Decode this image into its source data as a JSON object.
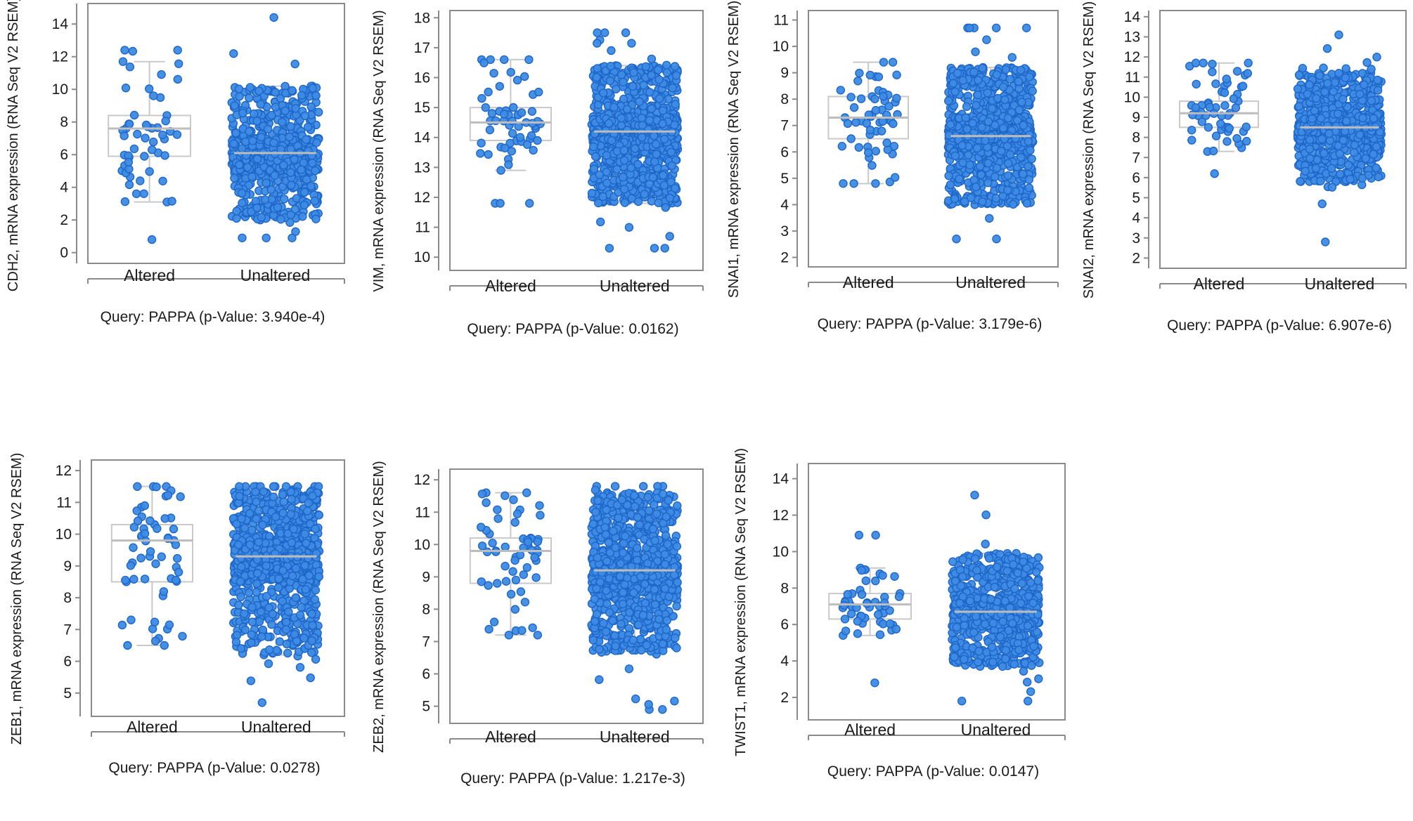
{
  "figure": {
    "caption_template": "Query: PAPPA (p-Value: {p})"
  },
  "colors": {
    "point_fill": "#3d8be4",
    "point_stroke": "#1e66c8",
    "box_stroke": "#c9c9c9",
    "median_stroke": "#bdbdbd",
    "frame_stroke": "#8a8a8a",
    "axis_stroke": "#8a8a8a"
  },
  "chart_data": [
    {
      "type": "box-strip",
      "gene": "CDH2",
      "ylabel": "CDH2, mRNA expression (RNA Seq V2 RSEM)",
      "ylim": [
        -0.4,
        15
      ],
      "yticks": [
        0,
        2,
        4,
        6,
        8,
        10,
        12,
        14
      ],
      "categories": [
        "Altered",
        "Unaltered"
      ],
      "caption": "Query: PAPPA (p-Value: 3.940e-4)",
      "p_value": "3.940e-4",
      "series": [
        {
          "name": "Altered",
          "n": 55,
          "min": 0.8,
          "q1": 5.9,
          "median": 7.6,
          "q3": 8.4,
          "max": 12.4,
          "whisker_low": 3.1,
          "whisker_high": 11.7
        },
        {
          "name": "Unaltered",
          "n": 720,
          "min": 0.9,
          "q1": 5.0,
          "median": 6.1,
          "q3": 7.0,
          "max": 14.4,
          "whisker_low": 2.0,
          "whisker_high": 10.2
        }
      ]
    },
    {
      "type": "box-strip",
      "gene": "VIM",
      "ylabel": "VIM, mRNA expression (RNA Seq V2 RSEM)",
      "ylim": [
        9.7,
        18.1
      ],
      "yticks": [
        10,
        11,
        12,
        13,
        14,
        15,
        16,
        17,
        18
      ],
      "categories": [
        "Altered",
        "Unaltered"
      ],
      "caption": "Query: PAPPA (p-Value: 0.0162)",
      "p_value": "0.0162",
      "series": [
        {
          "name": "Altered",
          "n": 60,
          "min": 11.8,
          "q1": 13.9,
          "median": 14.5,
          "q3": 15.0,
          "max": 16.6,
          "whisker_low": 12.9,
          "whisker_high": 16.6
        },
        {
          "name": "Unaltered",
          "n": 1000,
          "min": 10.3,
          "q1": 13.5,
          "median": 14.2,
          "q3": 14.7,
          "max": 17.5,
          "whisker_low": 11.8,
          "whisker_high": 16.4
        }
      ]
    },
    {
      "type": "box-strip",
      "gene": "SNAI1",
      "ylabel": "SNAI1, mRNA expression (RNA Seq V2 RSEM)",
      "ylim": [
        1.8,
        11.2
      ],
      "yticks": [
        2,
        3,
        4,
        5,
        6,
        7,
        8,
        9,
        10,
        11
      ],
      "categories": [
        "Altered",
        "Unaltered"
      ],
      "caption": "Query: PAPPA (p-Value: 3.179e-6)",
      "p_value": "3.179e-6",
      "series": [
        {
          "name": "Altered",
          "n": 60,
          "min": 4.8,
          "q1": 6.5,
          "median": 7.3,
          "q3": 8.1,
          "max": 9.4,
          "whisker_low": 4.8,
          "whisker_high": 9.4
        },
        {
          "name": "Unaltered",
          "n": 1000,
          "min": 2.7,
          "q1": 6.0,
          "median": 6.6,
          "q3": 7.3,
          "max": 10.7,
          "whisker_low": 4.0,
          "whisker_high": 9.2
        }
      ]
    },
    {
      "type": "box-strip",
      "gene": "SNAI2",
      "ylabel": "SNAI2, mRNA expression (RNA Seq V2 RSEM)",
      "ylim": [
        1.7,
        14.1
      ],
      "yticks": [
        2,
        3,
        4,
        5,
        6,
        7,
        8,
        9,
        10,
        11,
        12,
        13,
        14
      ],
      "categories": [
        "Altered",
        "Unaltered"
      ],
      "caption": "Query: PAPPA (p-Value: 6.907e-6)",
      "p_value": "6.907e-6",
      "series": [
        {
          "name": "Altered",
          "n": 60,
          "min": 6.2,
          "q1": 8.5,
          "median": 9.2,
          "q3": 9.8,
          "max": 11.7,
          "whisker_low": 7.3,
          "whisker_high": 11.7
        },
        {
          "name": "Unaltered",
          "n": 1000,
          "min": 2.8,
          "q1": 7.8,
          "median": 8.5,
          "q3": 9.2,
          "max": 13.1,
          "whisker_low": 5.8,
          "whisker_high": 11.2
        }
      ]
    },
    {
      "type": "box-strip",
      "gene": "ZEB1",
      "ylabel": "ZEB1, mRNA expression (RNA Seq V2 RSEM)",
      "ylim": [
        4.4,
        12.2
      ],
      "yticks": [
        5,
        6,
        7,
        8,
        9,
        10,
        11,
        12
      ],
      "categories": [
        "Altered",
        "Unaltered"
      ],
      "caption": "Query: PAPPA (p-Value: 0.0278)",
      "p_value": "0.0278",
      "series": [
        {
          "name": "Altered",
          "n": 60,
          "min": 6.5,
          "q1": 8.5,
          "median": 9.8,
          "q3": 10.3,
          "max": 11.5,
          "whisker_low": 6.5,
          "whisker_high": 11.5
        },
        {
          "name": "Unaltered",
          "n": 1000,
          "min": 4.7,
          "q1": 8.5,
          "median": 9.3,
          "q3": 9.9,
          "max": 11.5,
          "whisker_low": 6.2,
          "whisker_high": 11.4
        }
      ]
    },
    {
      "type": "box-strip",
      "gene": "ZEB2",
      "ylabel": "ZEB2, mRNA expression (RNA Seq V2 RSEM)",
      "ylim": [
        4.6,
        12.2
      ],
      "yticks": [
        5,
        6,
        7,
        8,
        9,
        10,
        11,
        12
      ],
      "categories": [
        "Altered",
        "Unaltered"
      ],
      "caption": "Query: PAPPA (p-Value: 1.217e-3)",
      "p_value": "1.217e-3",
      "series": [
        {
          "name": "Altered",
          "n": 60,
          "min": 7.2,
          "q1": 8.8,
          "median": 9.8,
          "q3": 10.2,
          "max": 11.6,
          "whisker_low": 7.2,
          "whisker_high": 11.6
        },
        {
          "name": "Unaltered",
          "n": 1000,
          "min": 4.9,
          "q1": 8.5,
          "median": 9.2,
          "q3": 9.8,
          "max": 11.8,
          "whisker_low": 6.7,
          "whisker_high": 11.6
        }
      ]
    },
    {
      "type": "box-strip",
      "gene": "TWIST1",
      "ylabel": "TWIST1, mRNA expression (RNA Seq V2 RSEM)",
      "ylim": [
        1.0,
        14.6
      ],
      "yticks": [
        2,
        4,
        6,
        8,
        10,
        12,
        14
      ],
      "categories": [
        "Altered",
        "Unaltered"
      ],
      "caption": "Query: PAPPA (p-Value: 0.0147)",
      "p_value": "0.0147",
      "series": [
        {
          "name": "Altered",
          "n": 55,
          "min": 2.8,
          "q1": 6.3,
          "median": 7.1,
          "q3": 7.7,
          "max": 10.9,
          "whisker_low": 5.4,
          "whisker_high": 9.1
        },
        {
          "name": "Unaltered",
          "n": 900,
          "min": 1.8,
          "q1": 5.9,
          "median": 6.7,
          "q3": 7.5,
          "max": 13.1,
          "whisker_low": 3.7,
          "whisker_high": 9.9
        }
      ]
    }
  ]
}
